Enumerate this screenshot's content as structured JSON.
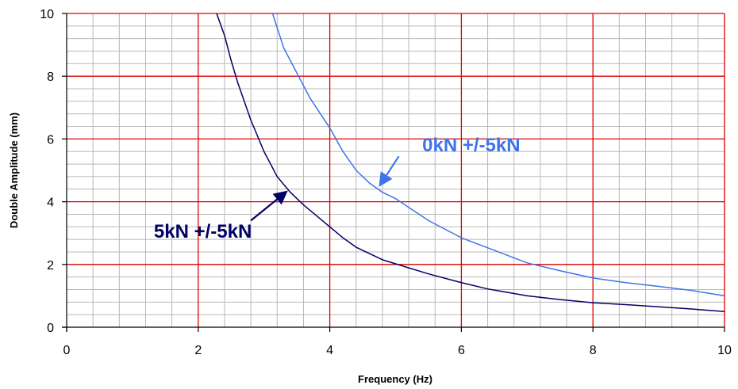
{
  "chart_data": {
    "type": "line",
    "title": "",
    "xlabel": "Frequency (Hz)",
    "ylabel": "Double Amplitude (mm)",
    "xlim": [
      0,
      10
    ],
    "ylim": [
      0,
      10
    ],
    "x_ticks": [
      "0",
      "2",
      "4",
      "6",
      "8",
      "10"
    ],
    "y_ticks": [
      "0",
      "2",
      "4",
      "6",
      "8",
      "10"
    ],
    "x_tick_values": [
      0,
      2,
      4,
      6,
      8,
      10
    ],
    "y_tick_values": [
      0,
      2,
      4,
      6,
      8,
      10
    ],
    "grid": true,
    "grid_major_x_step": 2,
    "grid_major_y_step": 2,
    "grid_minor_x_step": 0.4,
    "grid_minor_y_step": 0.4,
    "colors": {
      "major_grid": "#dd0000",
      "minor_grid": "#b8b8b8",
      "series_5kN": "#000066",
      "series_0kN": "#3f73e8",
      "axis": "#000000"
    },
    "series": [
      {
        "name": "5kN +/-5kN",
        "color": "#000066",
        "x": [
          2.28,
          2.4,
          2.5,
          2.6,
          2.8,
          3.0,
          3.2,
          3.4,
          3.6,
          3.8,
          4.0,
          4.2,
          4.4,
          4.6,
          4.8,
          5.0,
          5.5,
          6.0,
          6.4,
          7.0,
          7.5,
          8.0,
          8.5,
          9.0,
          9.5,
          10.0
        ],
        "y": [
          10.0,
          9.3,
          8.5,
          7.8,
          6.6,
          5.6,
          4.8,
          4.3,
          3.9,
          3.55,
          3.2,
          2.85,
          2.55,
          2.35,
          2.15,
          2.02,
          1.7,
          1.42,
          1.22,
          1.0,
          0.88,
          0.78,
          0.72,
          0.65,
          0.58,
          0.5
        ]
      },
      {
        "name": "0kN +/-5kN",
        "color": "#3f73e8",
        "x": [
          3.13,
          3.3,
          3.5,
          3.7,
          4.0,
          4.2,
          4.4,
          4.6,
          4.8,
          5.0,
          5.5,
          6.0,
          6.5,
          7.0,
          7.5,
          8.0,
          8.5,
          9.0,
          9.5,
          10.0
        ],
        "y": [
          10.0,
          8.9,
          8.1,
          7.3,
          6.35,
          5.6,
          5.0,
          4.6,
          4.3,
          4.1,
          3.4,
          2.85,
          2.45,
          2.05,
          1.8,
          1.57,
          1.42,
          1.3,
          1.17,
          1.0
        ]
      }
    ],
    "annotations": [
      {
        "text": "0kN +/-5kN",
        "series": "0kN +/-5kN",
        "text_x": 6.15,
        "text_y": 5.6,
        "color": "#3f73e8",
        "arrow_from": [
          5.05,
          5.45
        ],
        "arrow_to": [
          4.77,
          4.55
        ]
      },
      {
        "text": "5kN +/-5kN",
        "series": "5kN +/-5kN",
        "text_x": 2.07,
        "text_y": 2.85,
        "color": "#000066",
        "arrow_from": [
          2.8,
          3.4
        ],
        "arrow_to": [
          3.33,
          4.3
        ]
      }
    ]
  }
}
